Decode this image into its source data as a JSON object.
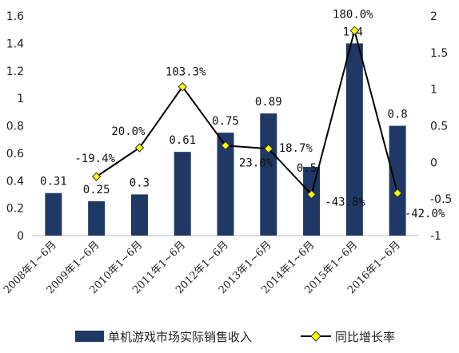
{
  "chart_data": {
    "type": "bar+line",
    "categories": [
      "2008年1~6月",
      "2009年1~6月",
      "2010年1~6月",
      "2011年1~6月",
      "2012年1~6月",
      "2013年1~6月",
      "2014年1~6月",
      "2015年1~6月",
      "2016年1~6月"
    ],
    "series": [
      {
        "name": "单机游戏市场实际销售收入",
        "type": "bar",
        "axis": "left",
        "values": [
          0.31,
          0.25,
          0.3,
          0.61,
          0.75,
          0.89,
          0.5,
          1.4,
          0.8
        ],
        "labels": [
          "0.31",
          "0.25",
          "0.3",
          "0.61",
          "0.75",
          "0.89",
          "0.5",
          "1.4",
          "0.8"
        ]
      },
      {
        "name": "同比增长率",
        "type": "line",
        "axis": "right",
        "values": [
          null,
          -0.194,
          0.2,
          1.033,
          0.23,
          0.187,
          -0.438,
          1.8,
          -0.42
        ],
        "labels": [
          "",
          "-19.4%",
          "20.0%",
          "103.3%",
          "23.0%",
          "18.7%",
          "-43.8%",
          "180.0%",
          "-42.0%"
        ]
      }
    ],
    "y_left": {
      "range": [
        0,
        1.6
      ],
      "ticks": [
        "0",
        "0.2",
        "0.4",
        "0.6",
        "0.8",
        "1",
        "1.2",
        "1.4",
        "1.6"
      ]
    },
    "y_right": {
      "range": [
        -1,
        2
      ],
      "ticks": [
        "-1",
        "-0.5",
        "0",
        "0.5",
        "1",
        "1.5",
        "2"
      ]
    },
    "grid": false,
    "legend_position": "bottom",
    "colors": {
      "bar": "#1f3864",
      "line": "#000000",
      "marker_fill": "#ffff00",
      "marker_stroke": "#333333"
    }
  }
}
